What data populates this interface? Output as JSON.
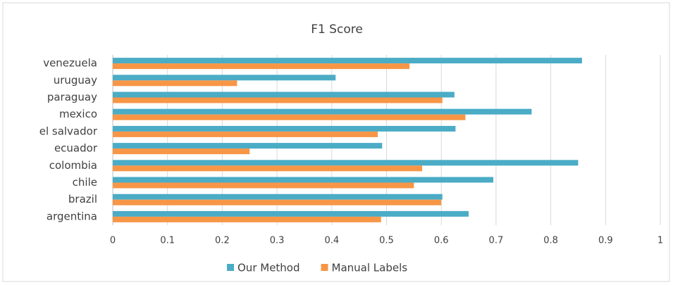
{
  "chart_data": {
    "type": "hbar",
    "title": "F1 Score",
    "categories": [
      "argentina",
      "brazil",
      "chile",
      "colombia",
      "ecuador",
      "el salvador",
      "mexico",
      "paraguay",
      "uruguay",
      "venezuela"
    ],
    "series": [
      {
        "name": "Our Method",
        "color": "#4bacc6",
        "values": [
          0.65,
          0.602,
          0.695,
          0.85,
          0.492,
          0.626,
          0.765,
          0.624,
          0.407,
          0.857
        ]
      },
      {
        "name": "Manual Labels",
        "color": "#f79646",
        "values": [
          0.49,
          0.6,
          0.55,
          0.565,
          0.25,
          0.484,
          0.644,
          0.602,
          0.227,
          0.542
        ]
      }
    ],
    "xlim": [
      0,
      1
    ],
    "xticks": [
      0,
      0.1,
      0.2,
      0.3,
      0.4,
      0.5,
      0.6,
      0.7,
      0.8,
      0.9,
      1
    ],
    "grid": true,
    "legend": "bottom"
  }
}
